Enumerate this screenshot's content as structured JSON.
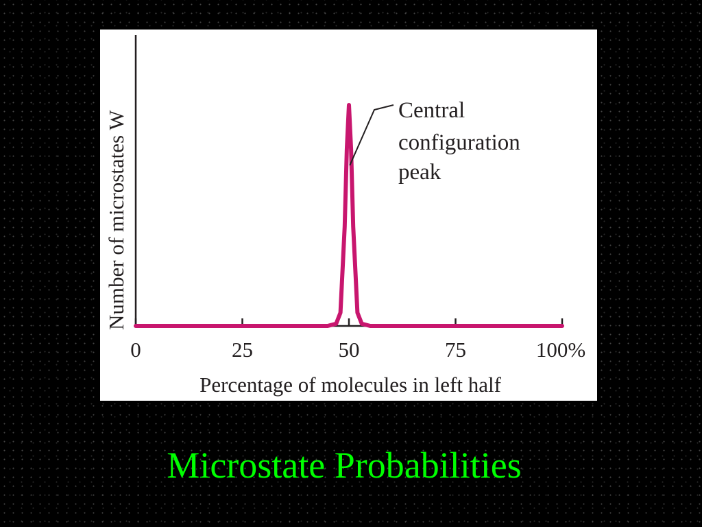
{
  "slide": {
    "title": "Microstate Probabilities"
  },
  "chart_data": {
    "type": "line",
    "xlabel": "Percentage of molecules in left half",
    "ylabel": "Number of microstates W",
    "xlim": [
      0,
      100
    ],
    "x_ticks": [
      0,
      25,
      50,
      75,
      100
    ],
    "x_tick_labels": [
      "0",
      "25",
      "50",
      "75",
      "100%"
    ],
    "y_ticks_shown": false,
    "grid": false,
    "legend": "none",
    "series": [
      {
        "color": "#c8166e",
        "x": [
          0,
          10,
          20,
          30,
          40,
          45,
          47,
          48,
          49,
          49.5,
          50,
          50.5,
          51,
          52,
          53,
          55,
          60,
          70,
          80,
          90,
          100
        ],
        "y": [
          0,
          0,
          0,
          0,
          0,
          0,
          0.01,
          0.06,
          0.45,
          0.8,
          1.0,
          0.8,
          0.45,
          0.06,
          0.01,
          0,
          0,
          0,
          0,
          0,
          0
        ]
      }
    ],
    "annotation": {
      "lines": [
        "Central",
        "configuration",
        "peak"
      ],
      "points_to": {
        "x": 50.2,
        "y": 0.82
      }
    },
    "colors": {
      "curve": "#c8166e",
      "axes": "#231f20",
      "title": "#00ff00",
      "background": "#000000",
      "panel": "#ffffff"
    }
  }
}
